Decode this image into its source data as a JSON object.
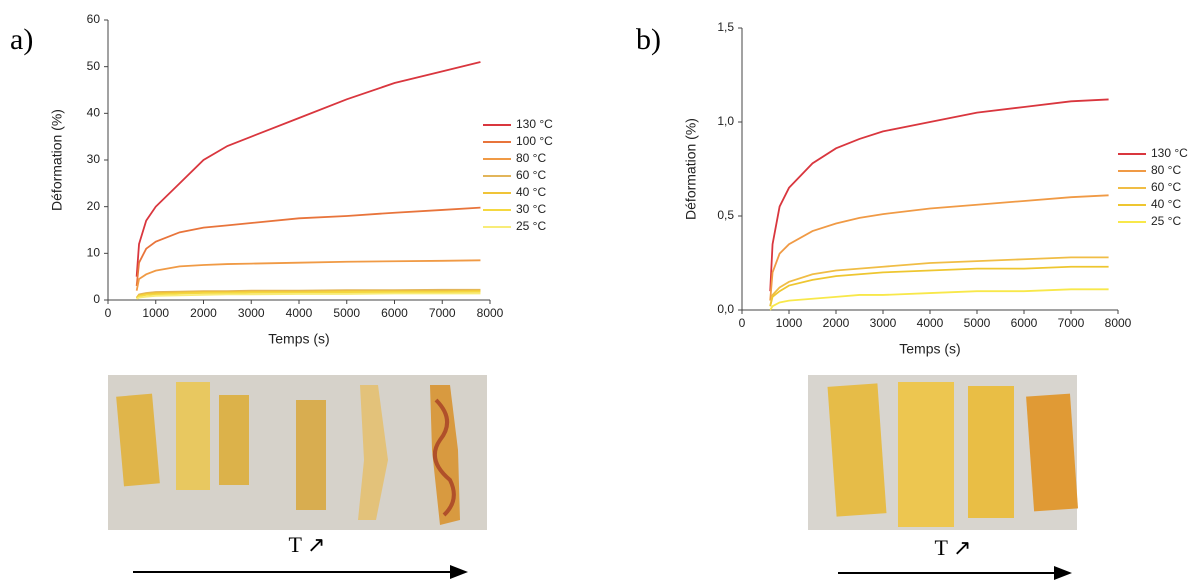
{
  "chart_data": [
    {
      "type": "line",
      "xlabel": "Temps (s)",
      "ylabel": "Déformation (%)",
      "xlim": [
        0,
        8000
      ],
      "xticks": [
        0,
        1000,
        2000,
        3000,
        4000,
        5000,
        6000,
        7000,
        8000
      ],
      "ylim": [
        0,
        60
      ],
      "yticks": [
        0,
        10,
        20,
        30,
        40,
        50,
        60
      ],
      "legend": "right",
      "x": [
        600,
        650,
        800,
        1000,
        1500,
        2000,
        2500,
        3000,
        4000,
        5000,
        6000,
        7000,
        7800
      ],
      "series": [
        {
          "name": "130 °C",
          "color": "#d9363e",
          "values": [
            5,
            12,
            17,
            20,
            25,
            30,
            33,
            35,
            39,
            43,
            46.5,
            49,
            51
          ]
        },
        {
          "name": "100 °C",
          "color": "#e8743b",
          "values": [
            3,
            8,
            11,
            12.5,
            14.5,
            15.5,
            16,
            16.5,
            17.5,
            18,
            18.7,
            19.3,
            19.8
          ]
        },
        {
          "name": "80 °C",
          "color": "#f09a45",
          "values": [
            2,
            4.5,
            5.5,
            6.3,
            7.2,
            7.5,
            7.7,
            7.8,
            8,
            8.2,
            8.3,
            8.4,
            8.5
          ]
        },
        {
          "name": "60 °C",
          "color": "#e2b55a",
          "values": [
            0.5,
            1.2,
            1.5,
            1.7,
            1.8,
            1.9,
            1.9,
            2,
            2,
            2.1,
            2.1,
            2.2,
            2.2
          ]
        },
        {
          "name": "40 °C",
          "color": "#f0c438",
          "values": [
            0.4,
            1,
            1.3,
            1.5,
            1.6,
            1.7,
            1.7,
            1.8,
            1.8,
            1.9,
            1.9,
            1.9,
            2
          ]
        },
        {
          "name": "30 °C",
          "color": "#f5d840",
          "values": [
            0.3,
            0.8,
            1.1,
            1.2,
            1.4,
            1.5,
            1.5,
            1.6,
            1.6,
            1.7,
            1.7,
            1.7,
            1.8
          ]
        },
        {
          "name": "25 °C",
          "color": "#f8ec78",
          "values": [
            0.2,
            0.5,
            0.7,
            0.9,
            1,
            1.1,
            1.2,
            1.2,
            1.3,
            1.3,
            1.4,
            1.4,
            1.4
          ]
        }
      ]
    },
    {
      "type": "line",
      "xlabel": "Temps (s)",
      "ylabel": "Déformation (%)",
      "xlim": [
        0,
        8000
      ],
      "xticks": [
        0,
        1000,
        2000,
        3000,
        4000,
        5000,
        6000,
        7000,
        8000
      ],
      "ylim": [
        0,
        1.5
      ],
      "yticks": [
        {
          "value": 0,
          "label": "0,0"
        },
        {
          "value": 0.5,
          "label": "0,5"
        },
        {
          "value": 1,
          "label": "1,0"
        },
        {
          "value": 1.5,
          "label": "1,5"
        }
      ],
      "legend": "right",
      "x": [
        600,
        650,
        800,
        1000,
        1500,
        2000,
        2500,
        3000,
        4000,
        5000,
        6000,
        7000,
        7800
      ],
      "series": [
        {
          "name": "130 °C",
          "color": "#d9363e",
          "values": [
            0.1,
            0.35,
            0.55,
            0.65,
            0.78,
            0.86,
            0.91,
            0.95,
            1.0,
            1.05,
            1.08,
            1.11,
            1.12
          ]
        },
        {
          "name": "80 °C",
          "color": "#f09a45",
          "values": [
            0.05,
            0.2,
            0.3,
            0.35,
            0.42,
            0.46,
            0.49,
            0.51,
            0.54,
            0.56,
            0.58,
            0.6,
            0.61
          ]
        },
        {
          "name": "60 °C",
          "color": "#f0bd45",
          "values": [
            0.02,
            0.08,
            0.12,
            0.15,
            0.19,
            0.21,
            0.22,
            0.23,
            0.25,
            0.26,
            0.27,
            0.28,
            0.28
          ]
        },
        {
          "name": "40 °C",
          "color": "#eec630",
          "values": [
            0.02,
            0.07,
            0.1,
            0.13,
            0.16,
            0.18,
            0.19,
            0.2,
            0.21,
            0.22,
            0.22,
            0.23,
            0.23
          ]
        },
        {
          "name": "25 °C",
          "color": "#f8e84a",
          "values": [
            0,
            0.02,
            0.04,
            0.05,
            0.06,
            0.07,
            0.08,
            0.08,
            0.09,
            0.1,
            0.1,
            0.11,
            0.11
          ]
        }
      ]
    }
  ],
  "panels": [
    {
      "label": "a)",
      "arrow_label": "T ↗"
    },
    {
      "label": "b)",
      "arrow_label": "T ↗"
    }
  ]
}
